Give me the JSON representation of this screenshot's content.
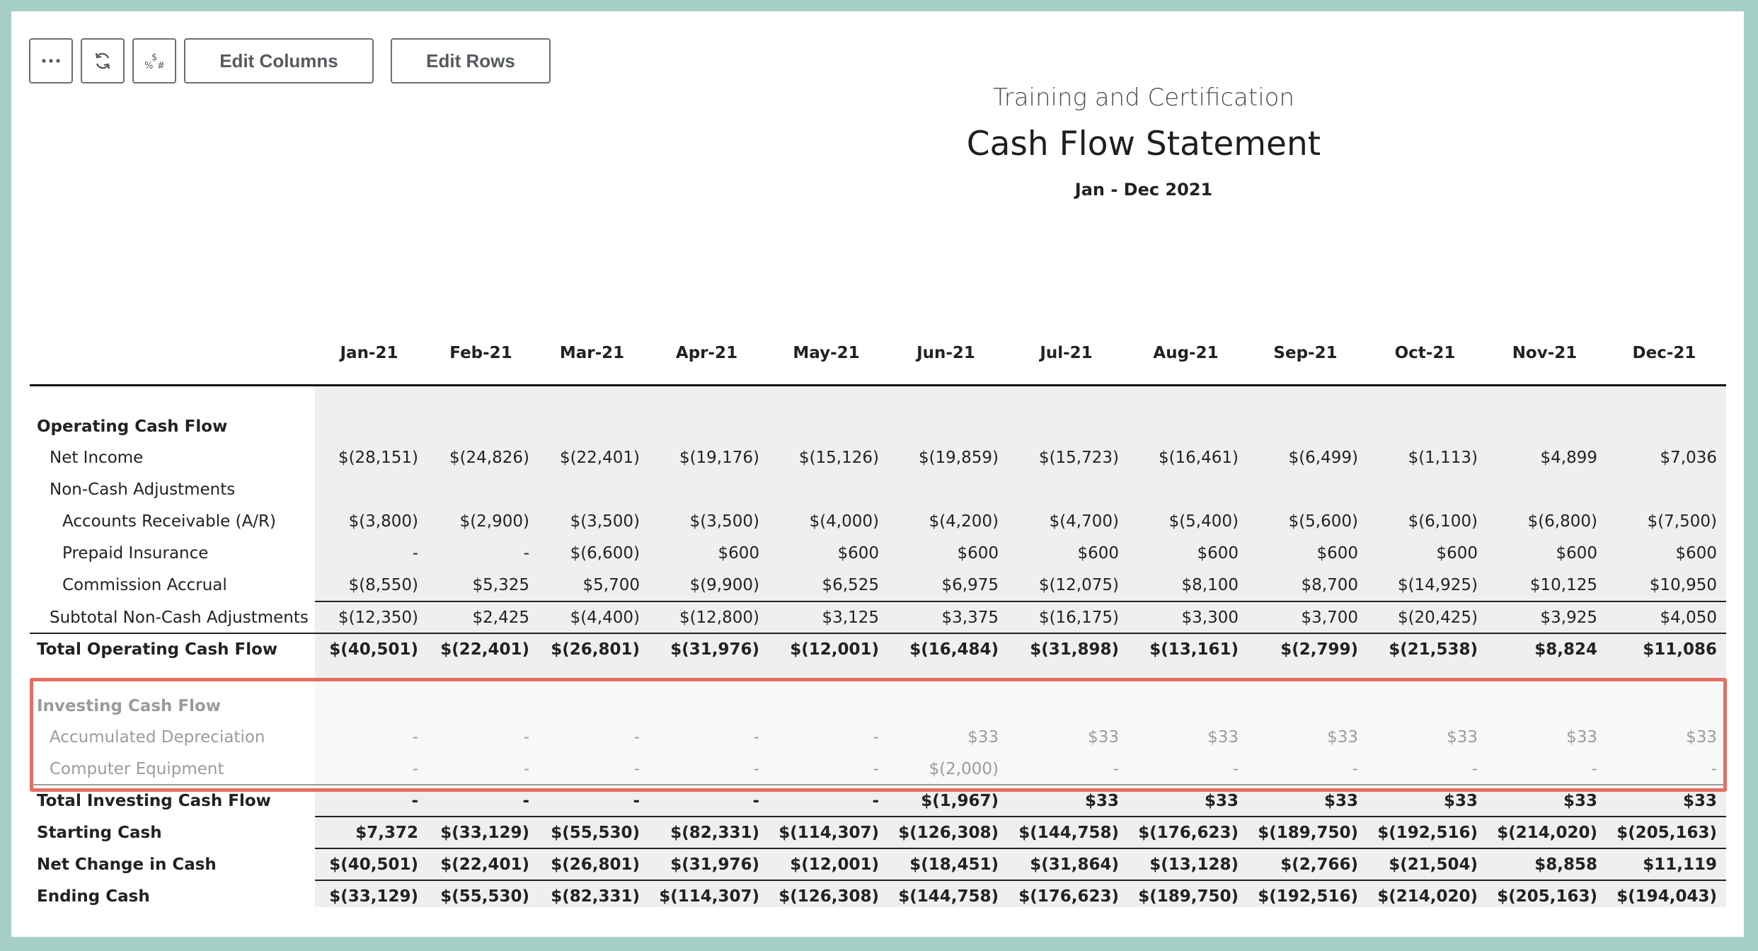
{
  "toolbar": {
    "more_icon": "more-dots-icon",
    "refresh_icon": "refresh-icon",
    "format_icon": "number-format-icon",
    "edit_columns_label": "Edit Columns",
    "edit_rows_label": "Edit Rows"
  },
  "report": {
    "subtitle": "Training and Certification",
    "title": "Cash Flow Statement",
    "period": "Jan - Dec 2021"
  },
  "columns": [
    "Jan-21",
    "Feb-21",
    "Mar-21",
    "Apr-21",
    "May-21",
    "Jun-21",
    "Jul-21",
    "Aug-21",
    "Sep-21",
    "Oct-21",
    "Nov-21",
    "Dec-21"
  ],
  "rows": [
    {
      "label": "Operating Cash Flow",
      "indent": 0,
      "bold": true,
      "values": []
    },
    {
      "label": "Net Income",
      "indent": 1,
      "bold": false,
      "values": [
        "$(28,151)",
        "$(24,826)",
        "$(22,401)",
        "$(19,176)",
        "$(15,126)",
        "$(19,859)",
        "$(15,723)",
        "$(16,461)",
        "$(6,499)",
        "$(1,113)",
        "$4,899",
        "$7,036"
      ]
    },
    {
      "label": "Non-Cash Adjustments",
      "indent": 1,
      "bold": false,
      "values": []
    },
    {
      "label": "Accounts Receivable (A/R)",
      "indent": 2,
      "bold": false,
      "values": [
        "$(3,800)",
        "$(2,900)",
        "$(3,500)",
        "$(3,500)",
        "$(4,000)",
        "$(4,200)",
        "$(4,700)",
        "$(5,400)",
        "$(5,600)",
        "$(6,100)",
        "$(6,800)",
        "$(7,500)"
      ]
    },
    {
      "label": "Prepaid Insurance",
      "indent": 2,
      "bold": false,
      "values": [
        "-",
        "-",
        "$(6,600)",
        "$600",
        "$600",
        "$600",
        "$600",
        "$600",
        "$600",
        "$600",
        "$600",
        "$600"
      ]
    },
    {
      "label": "Commission Accrual",
      "indent": 2,
      "bold": false,
      "values": [
        "$(8,550)",
        "$5,325",
        "$5,700",
        "$(9,900)",
        "$6,525",
        "$6,975",
        "$(12,075)",
        "$8,100",
        "$8,700",
        "$(14,925)",
        "$10,125",
        "$10,950"
      ]
    },
    {
      "label": "Subtotal Non-Cash Adjustments",
      "indent": 1,
      "bold": false,
      "values": [
        "$(12,350)",
        "$2,425",
        "$(4,400)",
        "$(12,800)",
        "$3,125",
        "$3,375",
        "$(16,175)",
        "$3,300",
        "$3,700",
        "$(20,425)",
        "$3,925",
        "$4,050"
      ]
    },
    {
      "label": "Total Operating Cash Flow",
      "indent": 0,
      "bold": true,
      "values": [
        "$(40,501)",
        "$(22,401)",
        "$(26,801)",
        "$(31,976)",
        "$(12,001)",
        "$(16,484)",
        "$(31,898)",
        "$(13,161)",
        "$(2,799)",
        "$(21,538)",
        "$8,824",
        "$11,086"
      ]
    },
    {
      "label": "Investing Cash Flow",
      "indent": 0,
      "bold": true,
      "values": []
    },
    {
      "label": "Accumulated Depreciation",
      "indent": 1,
      "bold": false,
      "values": [
        "-",
        "-",
        "-",
        "-",
        "-",
        "$33",
        "$33",
        "$33",
        "$33",
        "$33",
        "$33",
        "$33"
      ]
    },
    {
      "label": "Computer Equipment",
      "indent": 1,
      "bold": false,
      "values": [
        "-",
        "-",
        "-",
        "-",
        "-",
        "$(2,000)",
        "-",
        "-",
        "-",
        "-",
        "-",
        "-"
      ]
    },
    {
      "label": "Total Investing Cash Flow",
      "indent": 0,
      "bold": true,
      "values": [
        "-",
        "-",
        "-",
        "-",
        "-",
        "$(1,967)",
        "$33",
        "$33",
        "$33",
        "$33",
        "$33",
        "$33"
      ]
    },
    {
      "label": "Starting Cash",
      "indent": 0,
      "bold": true,
      "values": [
        "$7,372",
        "$(33,129)",
        "$(55,530)",
        "$(82,331)",
        "$(114,307)",
        "$(126,308)",
        "$(144,758)",
        "$(176,623)",
        "$(189,750)",
        "$(192,516)",
        "$(214,020)",
        "$(205,163)"
      ]
    },
    {
      "label": "Net Change in Cash",
      "indent": 0,
      "bold": true,
      "values": [
        "$(40,501)",
        "$(22,401)",
        "$(26,801)",
        "$(31,976)",
        "$(12,001)",
        "$(18,451)",
        "$(31,864)",
        "$(13,128)",
        "$(2,766)",
        "$(21,504)",
        "$8,858",
        "$11,119"
      ]
    },
    {
      "label": "Ending Cash",
      "indent": 0,
      "bold": true,
      "values": [
        "$(33,129)",
        "$(55,530)",
        "$(82,331)",
        "$(114,307)",
        "$(126,308)",
        "$(144,758)",
        "$(176,623)",
        "$(189,750)",
        "$(192,516)",
        "$(214,020)",
        "$(205,163)",
        "$(194,043)"
      ]
    }
  ]
}
